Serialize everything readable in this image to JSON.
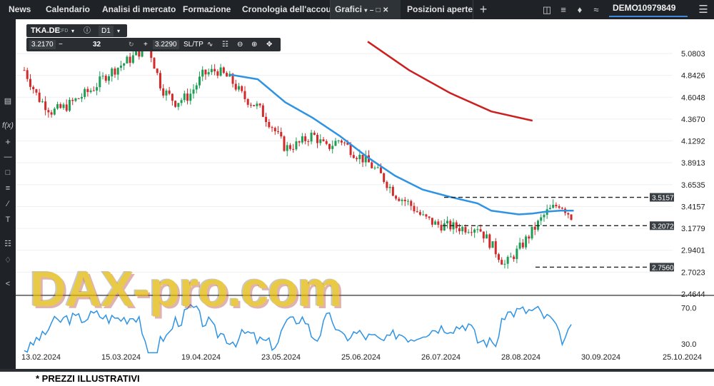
{
  "topbar": {
    "menu": [
      "News",
      "Calendario",
      "Analisi di mercato",
      "Formazione",
      "Cronologia dell'account"
    ],
    "tabs": {
      "charts": "Grafici",
      "positions": "Posizioni aperte",
      "add": "+"
    },
    "account": {
      "mode": "DEMO",
      "balance": "10979849"
    }
  },
  "toolbox": {
    "symbol": "TKA.DE",
    "symbol_tag": "CFD",
    "timeframe": "D1",
    "bid": "3.2170",
    "minus": "−",
    "volume": "32",
    "plus": "+",
    "ask": "3.2290",
    "sltp": "SL/TP"
  },
  "chart_data": {
    "type": "candlestick",
    "symbol": "TKA.DE",
    "timeframe": "D1",
    "y_axis_ticks": [
      "5.0803",
      "4.8426",
      "4.6048",
      "4.3670",
      "4.1292",
      "3.8913",
      "3.6535",
      "3.4157",
      "3.1779",
      "2.9401",
      "2.7023",
      "2.4644"
    ],
    "ylim": [
      2.46,
      5.2
    ],
    "x_axis_ticks": [
      "13.02.2024",
      "15.03.2024",
      "19.04.2024",
      "23.05.2024",
      "25.06.2024",
      "26.07.2024",
      "28.08.2024",
      "30.09.2024",
      "25.10.2024"
    ],
    "price_levels": [
      {
        "label": "3.5157",
        "value": 3.5157
      },
      {
        "label": "3.2072",
        "value": 3.2072
      },
      {
        "label": "2.7560",
        "value": 2.756
      }
    ],
    "close_series": [
      [
        0,
        4.9
      ],
      [
        10,
        4.6
      ],
      [
        20,
        4.45
      ],
      [
        30,
        4.5
      ],
      [
        40,
        4.6
      ],
      [
        50,
        4.7
      ],
      [
        60,
        4.85
      ],
      [
        70,
        4.95
      ],
      [
        80,
        5.05
      ],
      [
        90,
        5.18
      ],
      [
        100,
        4.7
      ],
      [
        110,
        4.55
      ],
      [
        120,
        4.62
      ],
      [
        130,
        4.85
      ],
      [
        140,
        4.9
      ],
      [
        150,
        4.8
      ],
      [
        160,
        4.6
      ],
      [
        170,
        4.5
      ],
      [
        180,
        4.3
      ],
      [
        190,
        4.05
      ],
      [
        200,
        4.1
      ],
      [
        210,
        4.2
      ],
      [
        220,
        4.05
      ],
      [
        230,
        4.15
      ],
      [
        240,
        4.0
      ],
      [
        250,
        3.9
      ],
      [
        260,
        3.75
      ],
      [
        270,
        3.55
      ],
      [
        280,
        3.45
      ],
      [
        290,
        3.3
      ],
      [
        300,
        3.22
      ],
      [
        310,
        3.2
      ],
      [
        320,
        3.18
      ],
      [
        330,
        3.2
      ],
      [
        340,
        3.0
      ],
      [
        350,
        2.78
      ],
      [
        360,
        2.95
      ],
      [
        370,
        3.15
      ],
      [
        380,
        3.35
      ],
      [
        390,
        3.45
      ],
      [
        400,
        3.28
      ]
    ],
    "moving_averages": [
      {
        "color": "#2f93e4",
        "points": [
          [
            150,
            4.85
          ],
          [
            170,
            4.8
          ],
          [
            190,
            4.55
          ],
          [
            210,
            4.38
          ],
          [
            230,
            4.18
          ],
          [
            250,
            3.95
          ],
          [
            270,
            3.75
          ],
          [
            290,
            3.6
          ],
          [
            310,
            3.52
          ],
          [
            330,
            3.45
          ],
          [
            340,
            3.37
          ],
          [
            350,
            3.35
          ],
          [
            360,
            3.33
          ],
          [
            370,
            3.34
          ],
          [
            380,
            3.36
          ],
          [
            390,
            3.37
          ],
          [
            400,
            3.37
          ]
        ]
      },
      {
        "color": "#cc1f1f",
        "points": [
          [
            250,
            5.21
          ],
          [
            280,
            4.9
          ],
          [
            310,
            4.65
          ],
          [
            340,
            4.45
          ],
          [
            370,
            4.35
          ]
        ]
      }
    ],
    "oscillator": {
      "ticks": [
        "70.0",
        "30.0"
      ],
      "ylim": [
        10,
        80
      ]
    },
    "watermark": "DAX-pro.com"
  },
  "footnote": "* PREZZI ILLUSTRATIVI"
}
